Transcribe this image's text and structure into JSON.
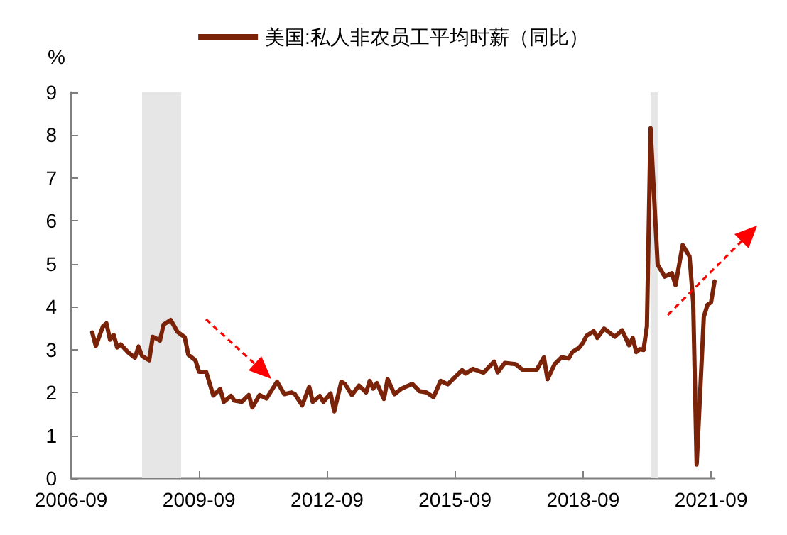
{
  "chart_data": {
    "type": "line",
    "ylabel": "%",
    "legend": "top",
    "grid": false,
    "marker": "none",
    "line_style": "solid",
    "xlim": [
      "2006-09",
      "2021-10"
    ],
    "xticks": [
      "2006-09",
      "2009-09",
      "2012-09",
      "2015-09",
      "2018-09",
      "2021-09"
    ],
    "ylim": [
      0,
      9
    ],
    "yticks": [
      0,
      1,
      2,
      3,
      4,
      5,
      6,
      7,
      8,
      9
    ],
    "bands": [
      {
        "axis": "x",
        "from": "2008-05",
        "to": "2009-04",
        "color": "#e6e6e6"
      },
      {
        "axis": "x",
        "from": "2020-04",
        "to": "2020-06",
        "color": "#e6e6e6"
      }
    ],
    "series": [
      {
        "name": "美国:私人非农员工平均时薪（同比）",
        "color": "#7b2308",
        "x": [
          "2007-03",
          "2007-04",
          "2007-06",
          "2007-07",
          "2007-08",
          "2007-09",
          "2007-10",
          "2007-11",
          "2008-01",
          "2008-03",
          "2008-04",
          "2008-05",
          "2008-07",
          "2008-08",
          "2008-10",
          "2008-11",
          "2009-01",
          "2009-03",
          "2009-05",
          "2009-06",
          "2009-08",
          "2009-09",
          "2009-11",
          "2010-01",
          "2010-03",
          "2010-04",
          "2010-06",
          "2010-07",
          "2010-09",
          "2010-11",
          "2010-12",
          "2011-02",
          "2011-04",
          "2011-07",
          "2011-09",
          "2011-11",
          "2011-12",
          "2012-02",
          "2012-04",
          "2012-05",
          "2012-07",
          "2012-08",
          "2012-10",
          "2012-11",
          "2013-01",
          "2013-02",
          "2013-04",
          "2013-06",
          "2013-08",
          "2013-09",
          "2013-10",
          "2013-11",
          "2014-01",
          "2014-02",
          "2014-04",
          "2014-06",
          "2014-09",
          "2014-11",
          "2015-01",
          "2015-03",
          "2015-05",
          "2015-07",
          "2015-11",
          "2015-12",
          "2016-02",
          "2016-05",
          "2016-08",
          "2016-09",
          "2016-11",
          "2017-02",
          "2017-04",
          "2017-08",
          "2017-10",
          "2017-11",
          "2018-01",
          "2018-03",
          "2018-05",
          "2018-06",
          "2018-08",
          "2018-09",
          "2018-10",
          "2018-12",
          "2019-01",
          "2019-03",
          "2019-06",
          "2019-08",
          "2019-10",
          "2019-11",
          "2019-12",
          "2020-01",
          "2020-02",
          "2020-03",
          "2020-04",
          "2020-06",
          "2020-08",
          "2020-10",
          "2020-11",
          "2021-01",
          "2021-03",
          "2021-04",
          "2021-05",
          "2021-07",
          "2021-08",
          "2021-09",
          "2021-10"
        ],
        "values": [
          3.4,
          3.08,
          3.54,
          3.61,
          3.23,
          3.34,
          3.05,
          3.12,
          2.94,
          2.81,
          3.07,
          2.85,
          2.75,
          3.3,
          3.21,
          3.58,
          3.69,
          3.41,
          3.29,
          2.88,
          2.75,
          2.48,
          2.48,
          1.93,
          2.08,
          1.78,
          1.92,
          1.81,
          1.78,
          1.94,
          1.65,
          1.94,
          1.86,
          2.25,
          1.96,
          2.0,
          1.96,
          1.7,
          2.13,
          1.78,
          1.92,
          1.78,
          1.98,
          1.56,
          2.25,
          2.2,
          1.94,
          2.16,
          2.0,
          2.27,
          2.09,
          2.22,
          1.85,
          2.31,
          1.96,
          2.09,
          2.2,
          2.03,
          2.0,
          1.89,
          2.27,
          2.19,
          2.52,
          2.44,
          2.55,
          2.46,
          2.72,
          2.47,
          2.69,
          2.66,
          2.53,
          2.53,
          2.82,
          2.31,
          2.66,
          2.82,
          2.79,
          2.94,
          3.05,
          3.16,
          3.32,
          3.43,
          3.27,
          3.49,
          3.3,
          3.45,
          3.1,
          3.27,
          2.94,
          3.01,
          2.99,
          3.54,
          8.16,
          4.98,
          4.7,
          4.78,
          4.5,
          5.44,
          5.17,
          4.1,
          0.32,
          3.76,
          4.04,
          4.1,
          4.59
        ]
      }
    ]
  }
}
